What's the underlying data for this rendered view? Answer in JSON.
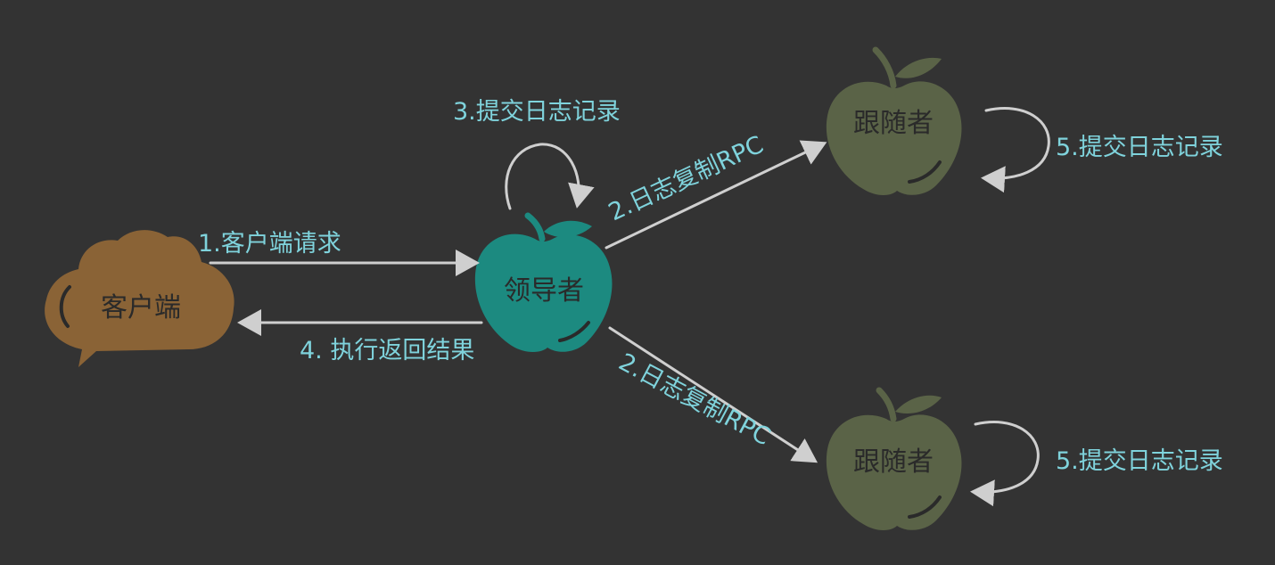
{
  "nodes": {
    "client": {
      "label": "客户端",
      "color": "#8a6336"
    },
    "leader": {
      "label": "领导者",
      "color": "#1c8a80"
    },
    "follower_top": {
      "label": "跟随者",
      "color": "#5a6347"
    },
    "follower_bottom": {
      "label": "跟随者",
      "color": "#5a6347"
    }
  },
  "labels": {
    "client_request": "1.客户端请求",
    "replicate_top": "2.日志复制RPC",
    "replicate_bottom": "2.日志复制RPC",
    "leader_commit": "3.提交日志记录",
    "return_result": "4. 执行返回结果",
    "follower_commit_top": "5.提交日志记录",
    "follower_commit_bottom": "5.提交日志记录"
  },
  "colors": {
    "background": "#333333",
    "label_text": "#7fd3dc",
    "arrow": "#cfcfcf"
  }
}
